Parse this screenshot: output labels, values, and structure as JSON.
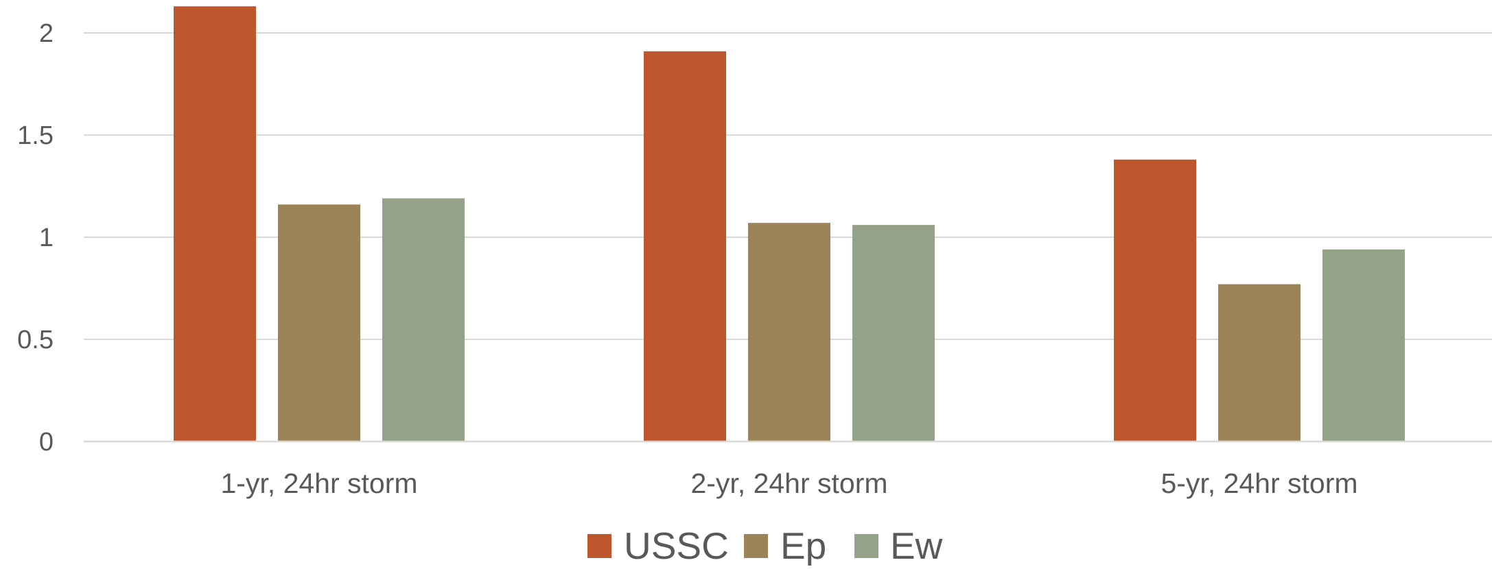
{
  "chart_data": {
    "type": "bar",
    "title": "",
    "xlabel": "",
    "ylabel": "",
    "categories": [
      "1-yr, 24hr storm",
      "2-yr, 24hr storm",
      "5-yr, 24hr storm"
    ],
    "series": [
      {
        "name": "USSC",
        "color": "#BE572D",
        "values": [
          2.13,
          1.91,
          1.38
        ]
      },
      {
        "name": "Ep",
        "color": "#9C8458",
        "values": [
          1.16,
          1.07,
          0.77
        ]
      },
      {
        "name": "Ew",
        "color": "#95A188",
        "values": [
          1.19,
          1.06,
          0.94
        ]
      }
    ],
    "ylim": [
      0,
      2.15
    ],
    "yticks": [
      0,
      0.5,
      1,
      1.5,
      2
    ],
    "ytick_labels": [
      "0",
      "0.5",
      "1",
      "1.5",
      "2"
    ],
    "grid": true,
    "legend_position": "bottom"
  }
}
